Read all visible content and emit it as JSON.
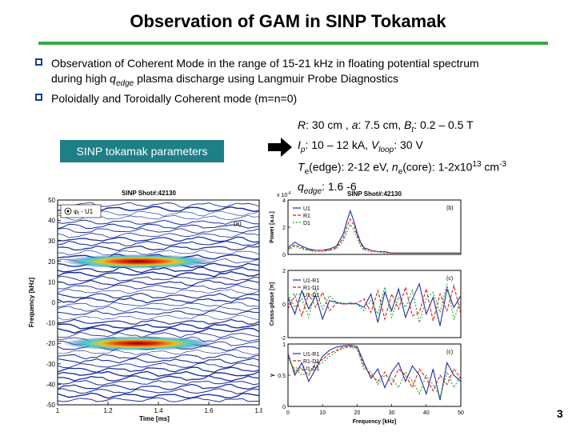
{
  "slide": {
    "title": "Observation of GAM in SINP Tokamak",
    "page_number": "3",
    "accent_color": "#3aa847",
    "bullet_color": "#1a3c8c",
    "bullets": [
      {
        "line1": "Observation of Coherent Mode in the range of 15-21 kHz in floating potential spectrum",
        "line2_pre": "during high ",
        "line2_var": "q",
        "line2_sub": "edge",
        "line2_post": " plasma discharge using Langmuir Probe Diagnostics"
      },
      {
        "line1": "Poloidally and Toroidally Coherent mode (m=n=0)"
      }
    ],
    "param_box": {
      "label": "SINP tokamak parameters",
      "color": "#1f7f86"
    },
    "arrow_icon": "right-arrow-icon",
    "params": {
      "R_label": "R",
      "R_value": ": 30 cm  , ",
      "a_label": "a",
      "a_value": ": 7.5 cm, ",
      "Bt_label": "B",
      "Bt_sub": "t",
      "Bt_value": ": 0.2 – 0.5 T",
      "Ip_label": "I",
      "Ip_sub": "p",
      "Ip_value": ": 10 – 12 kA, ",
      "Vloop_label": "V",
      "Vloop_sub": "loop",
      "Vloop_value": ": 30 V",
      "Te_label": "T",
      "Te_sub": "e",
      "Te_value": "(edge): 2-12 eV, ",
      "ne_label": "n",
      "ne_sub": "e",
      "ne_value": "(core): 1-2x10",
      "ne_exp": "13",
      "ne_unit": " cm",
      "ne_unit_exp": "-3",
      "q_label": "q",
      "q_sub": "edge",
      "q_value": ": 1.6 -6"
    }
  },
  "chart_data": [
    {
      "type": "heatmap",
      "title": "SINP Shot#:42130",
      "panel_label": "(a)",
      "legend": "φ",
      "legend_sub": "f",
      "legend_tail": " - U1",
      "xlabel": "Time [ms]",
      "ylabel": "Frequency [kHz]",
      "xlim": [
        1,
        1.8
      ],
      "ylim": [
        -50,
        50
      ],
      "xticks": [
        "1",
        "1.2",
        "1.4",
        "1.6",
        "1.8"
      ],
      "yticks": [
        "50",
        "40",
        "30",
        "20",
        "10",
        "0",
        "-10",
        "-20",
        "-30",
        "-40",
        "-50"
      ],
      "features": [
        {
          "label": "coherent mode",
          "freq": 20,
          "t_start": 1.02,
          "t_end": 1.62
        },
        {
          "label": "coherent mode",
          "freq": -20,
          "t_start": 1.02,
          "t_end": 1.62
        }
      ]
    },
    {
      "type": "line",
      "title": "SINP Shot#:42130",
      "panel_label": "(b)",
      "ylabel": "Power [a.u.]",
      "ylim": [
        0,
        4
      ],
      "y_exponent": "x 10",
      "y_exponent_power": "-6",
      "yticks": [
        "4",
        "2",
        "0"
      ],
      "x": [
        0,
        2,
        4,
        6,
        8,
        10,
        12,
        14,
        16,
        17,
        18,
        19,
        20,
        21,
        22,
        24,
        26,
        28,
        30,
        32,
        34,
        36,
        38,
        40,
        42,
        44,
        46,
        48,
        50
      ],
      "series": [
        {
          "name": "U1",
          "color": "#1f2fa0",
          "values": [
            0.5,
            0.9,
            0.6,
            0.4,
            0.3,
            0.3,
            0.4,
            0.6,
            1.5,
            2.4,
            3.2,
            2.5,
            1.6,
            0.9,
            0.5,
            0.3,
            0.2,
            0.2,
            0.1,
            0.1,
            0.1,
            0.1,
            0.1,
            0.1,
            0.1,
            0.1,
            0.1,
            0.1,
            0.1
          ]
        },
        {
          "name": "R1",
          "color": "#d42020",
          "values": [
            0.4,
            0.7,
            0.5,
            0.3,
            0.3,
            0.3,
            0.3,
            0.5,
            1.2,
            2.0,
            2.6,
            2.2,
            1.4,
            0.8,
            0.4,
            0.3,
            0.2,
            0.2,
            0.1,
            0.1,
            0.1,
            0.1,
            0.1,
            0.1,
            0.1,
            0.1,
            0.1,
            0.1,
            0.1
          ]
        },
        {
          "name": "D1",
          "color": "#1aa028",
          "values": [
            0.3,
            0.6,
            0.4,
            0.3,
            0.2,
            0.2,
            0.3,
            0.4,
            1.0,
            1.6,
            2.2,
            1.8,
            1.2,
            0.6,
            0.3,
            0.2,
            0.2,
            0.1,
            0.1,
            0.1,
            0.1,
            0.1,
            0.1,
            0.1,
            0.1,
            0.1,
            0.1,
            0.1,
            0.1
          ]
        }
      ]
    },
    {
      "type": "line",
      "panel_label": "(c)",
      "ylabel": "Cross-phase [π]",
      "ylim": [
        -2,
        2
      ],
      "yticks": [
        "2",
        "0",
        "-2"
      ],
      "x": [
        0,
        2,
        4,
        6,
        8,
        10,
        12,
        14,
        16,
        18,
        20,
        22,
        24,
        26,
        28,
        30,
        32,
        34,
        36,
        38,
        40,
        42,
        44,
        46,
        48,
        50
      ],
      "series": [
        {
          "name": "U1-R1",
          "color": "#1f2fa0",
          "values": [
            0.4,
            -0.6,
            0.8,
            -0.3,
            0.5,
            -0.9,
            0.2,
            0.1,
            0.0,
            0.05,
            0.0,
            -0.2,
            0.6,
            -1.1,
            0.7,
            -0.4,
            0.9,
            -0.8,
            0.3,
            1.2,
            -0.6,
            0.4,
            -1.3,
            0.9,
            -0.2,
            0.5
          ]
        },
        {
          "name": "R1-D1",
          "color": "#d42020",
          "values": [
            -0.3,
            0.5,
            -0.7,
            0.6,
            -0.2,
            0.7,
            -0.4,
            0.05,
            0.0,
            0.0,
            0.05,
            0.3,
            -0.5,
            0.8,
            -0.9,
            0.6,
            -0.3,
            1.0,
            -0.7,
            -0.5,
            0.9,
            -1.0,
            0.6,
            -0.4,
            1.1,
            -0.6
          ]
        },
        {
          "name": "U1-D1",
          "color": "#1aa028",
          "values": [
            0.6,
            -0.2,
            0.3,
            -0.8,
            0.9,
            -0.3,
            0.5,
            0.1,
            0.05,
            0.0,
            0.0,
            -0.4,
            0.2,
            -0.6,
            1.0,
            -0.8,
            0.4,
            -0.2,
            0.8,
            -1.1,
            0.3,
            0.7,
            -0.5,
            1.2,
            -0.9,
            0.2
          ]
        }
      ]
    },
    {
      "type": "line",
      "panel_label": "(c)",
      "ylabel": "γ",
      "xlabel": "Frequency [kHz]",
      "ylim": [
        0,
        1
      ],
      "xlim": [
        0,
        50
      ],
      "yticks": [
        "1",
        "0.5",
        "0"
      ],
      "xticks": [
        "0",
        "10",
        "20",
        "30",
        "40",
        "50"
      ],
      "x": [
        0,
        2,
        4,
        6,
        8,
        10,
        12,
        14,
        16,
        18,
        20,
        22,
        24,
        26,
        28,
        30,
        32,
        34,
        36,
        38,
        40,
        42,
        44,
        46,
        48,
        50
      ],
      "series": [
        {
          "name": "U1-R1",
          "color": "#1f2fa0",
          "values": [
            0.85,
            0.5,
            0.7,
            0.4,
            0.6,
            0.8,
            0.9,
            0.95,
            0.97,
            0.98,
            0.96,
            0.7,
            0.45,
            0.6,
            0.3,
            0.55,
            0.7,
            0.4,
            0.65,
            0.5,
            0.2,
            0.6,
            0.1,
            0.7,
            0.5,
            0.4
          ]
        },
        {
          "name": "R1-D1",
          "color": "#d42020",
          "values": [
            0.8,
            0.55,
            0.6,
            0.5,
            0.7,
            0.75,
            0.85,
            0.9,
            0.95,
            0.96,
            0.94,
            0.65,
            0.5,
            0.4,
            0.55,
            0.35,
            0.6,
            0.5,
            0.3,
            0.6,
            0.45,
            0.25,
            0.5,
            0.35,
            0.6,
            0.45
          ]
        },
        {
          "name": "U1-D1",
          "color": "#1aa028",
          "values": [
            0.75,
            0.6,
            0.5,
            0.55,
            0.65,
            0.7,
            0.8,
            0.88,
            0.93,
            0.95,
            0.92,
            0.6,
            0.55,
            0.35,
            0.5,
            0.45,
            0.3,
            0.55,
            0.4,
            0.2,
            0.5,
            0.35,
            0.15,
            0.55,
            0.3,
            0.5
          ]
        }
      ]
    }
  ]
}
